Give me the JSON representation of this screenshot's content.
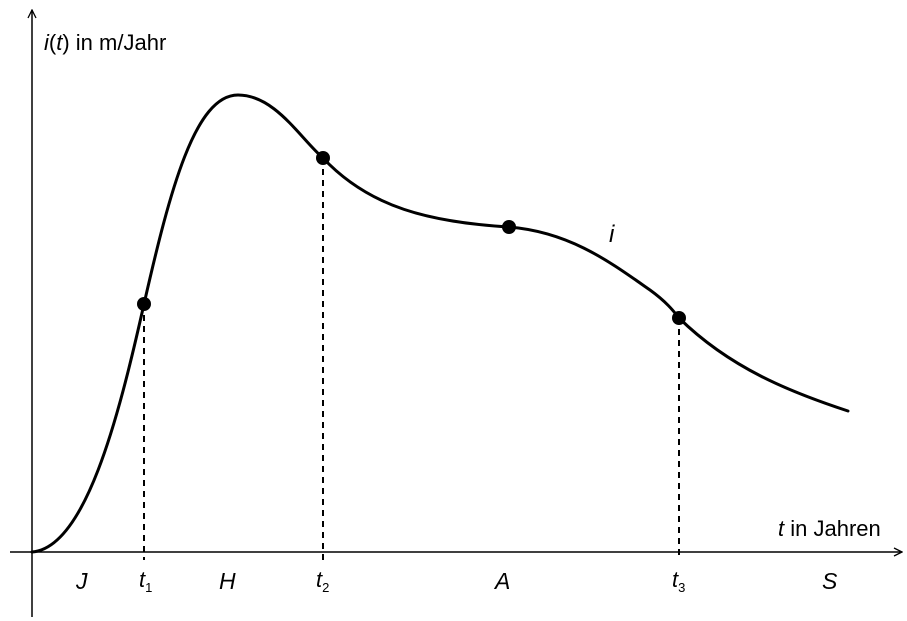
{
  "chart_data": {
    "type": "line",
    "title": "",
    "ylabel": {
      "func": "i",
      "var": "t",
      "unit": "in m/Jahr"
    },
    "xlabel": {
      "var": "t",
      "unit": "in Jahren"
    },
    "curve_label": "i",
    "axis_ticks": [
      {
        "base": "t",
        "sub": "1"
      },
      {
        "base": "t",
        "sub": "2"
      },
      {
        "base": "t",
        "sub": "3"
      }
    ],
    "phase_labels": [
      "J",
      "H",
      "A",
      "S"
    ],
    "grid": false,
    "legend": "none"
  }
}
